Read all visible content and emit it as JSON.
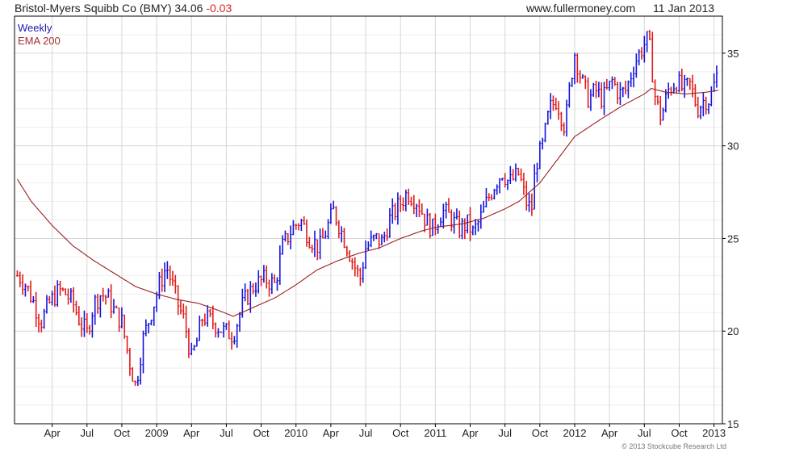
{
  "header": {
    "company": "Bristol-Myers Squibb Co (BMY)",
    "last_price": "34.06",
    "change": "-0.03",
    "site": "www.fullermoney.com",
    "date": "11 Jan 2013"
  },
  "legend": {
    "weekly": "Weekly",
    "ema": "EMA 200"
  },
  "copyright": "© 2013 Stockcube Research Ltd",
  "colors": {
    "up": "#1515dd",
    "down": "#e11b1b",
    "ema": "#9b2020",
    "grid": "#d6d6d6",
    "frame": "#000000"
  },
  "chart_data": {
    "type": "line",
    "subtype": "weekly price bars (high-low ranges, colored by week direction) with 200-period EMA",
    "title": "Bristol-Myers Squibb Co (BMY)",
    "xlabel": "",
    "ylabel": "",
    "ylim": [
      15,
      37
    ],
    "y_ticks": [
      15,
      20,
      25,
      30,
      35
    ],
    "grid": true,
    "y_axis_side": "right",
    "legend_placement": "top-left",
    "x_tick_labels": [
      "Apr",
      "Jul",
      "Oct",
      "2009",
      "Apr",
      "Jul",
      "Oct",
      "2010",
      "Apr",
      "Jul",
      "Oct",
      "2011",
      "Apr",
      "Jul",
      "Oct",
      "2012",
      "Apr",
      "Jul",
      "Oct",
      "2013"
    ],
    "x_tick_positions": [
      2008.25,
      2008.5,
      2008.75,
      2009.0,
      2009.25,
      2009.5,
      2009.75,
      2010.0,
      2010.25,
      2010.5,
      2010.75,
      2011.0,
      2011.25,
      2011.5,
      2011.75,
      2012.0,
      2012.25,
      2012.5,
      2012.75,
      2013.0
    ],
    "series": [
      {
        "name": "Weekly",
        "anchors": [
          [
            2008.01,
            23.0
          ],
          [
            2008.06,
            22.5
          ],
          [
            2008.12,
            21.5
          ],
          [
            2008.17,
            20.5
          ],
          [
            2008.23,
            21.5
          ],
          [
            2008.3,
            22.2
          ],
          [
            2008.35,
            22.0
          ],
          [
            2008.4,
            21.5
          ],
          [
            2008.45,
            20.5
          ],
          [
            2008.5,
            19.9
          ],
          [
            2008.55,
            21.5
          ],
          [
            2008.6,
            22.0
          ],
          [
            2008.65,
            21.8
          ],
          [
            2008.7,
            21.0
          ],
          [
            2008.75,
            20.5
          ],
          [
            2008.8,
            18.5
          ],
          [
            2008.85,
            17.0
          ],
          [
            2008.9,
            19.5
          ],
          [
            2008.94,
            20.5
          ],
          [
            2008.98,
            21.5
          ],
          [
            2009.02,
            22.5
          ],
          [
            2009.07,
            23.5
          ],
          [
            2009.1,
            22.8
          ],
          [
            2009.15,
            21.5
          ],
          [
            2009.2,
            20.5
          ],
          [
            2009.25,
            18.5
          ],
          [
            2009.29,
            19.5
          ],
          [
            2009.33,
            20.8
          ],
          [
            2009.4,
            20.5
          ],
          [
            2009.48,
            20.0
          ],
          [
            2009.55,
            19.8
          ],
          [
            2009.62,
            21.5
          ],
          [
            2009.7,
            22.5
          ],
          [
            2009.78,
            22.8
          ],
          [
            2009.85,
            22.5
          ],
          [
            2009.9,
            24.5
          ],
          [
            2009.97,
            25.5
          ],
          [
            2010.03,
            26.0
          ],
          [
            2010.1,
            25.0
          ],
          [
            2010.17,
            24.5
          ],
          [
            2010.22,
            25.5
          ],
          [
            2010.27,
            26.5
          ],
          [
            2010.32,
            25.5
          ],
          [
            2010.37,
            24.5
          ],
          [
            2010.42,
            23.5
          ],
          [
            2010.46,
            22.8
          ],
          [
            2010.5,
            24.5
          ],
          [
            2010.57,
            25.0
          ],
          [
            2010.62,
            24.8
          ],
          [
            2010.67,
            26.0
          ],
          [
            2010.74,
            26.8
          ],
          [
            2010.8,
            27.5
          ],
          [
            2010.87,
            27.0
          ],
          [
            2010.93,
            26.0
          ],
          [
            2010.98,
            25.5
          ],
          [
            2011.05,
            26.5
          ],
          [
            2011.1,
            26.2
          ],
          [
            2011.17,
            25.5
          ],
          [
            2011.23,
            25.8
          ],
          [
            2011.27,
            25.3
          ],
          [
            2011.32,
            26.0
          ],
          [
            2011.37,
            27.0
          ],
          [
            2011.43,
            28.0
          ],
          [
            2011.48,
            28.6
          ],
          [
            2011.53,
            28.0
          ],
          [
            2011.6,
            28.5
          ],
          [
            2011.65,
            27.0
          ],
          [
            2011.69,
            26.5
          ],
          [
            2011.72,
            29.0
          ],
          [
            2011.77,
            30.0
          ],
          [
            2011.82,
            32.0
          ],
          [
            2011.87,
            32.5
          ],
          [
            2011.93,
            31.0
          ],
          [
            2011.97,
            33.5
          ],
          [
            2012.0,
            35.0
          ],
          [
            2012.05,
            33.5
          ],
          [
            2012.1,
            32.5
          ],
          [
            2012.15,
            33.0
          ],
          [
            2012.2,
            32.5
          ],
          [
            2012.27,
            33.5
          ],
          [
            2012.32,
            32.8
          ],
          [
            2012.37,
            33.0
          ],
          [
            2012.43,
            34.5
          ],
          [
            2012.5,
            35.5
          ],
          [
            2012.53,
            35.8
          ],
          [
            2012.58,
            32.5
          ],
          [
            2012.62,
            31.5
          ],
          [
            2012.67,
            33.0
          ],
          [
            2012.73,
            33.5
          ],
          [
            2012.78,
            33.0
          ],
          [
            2012.83,
            33.3
          ],
          [
            2012.88,
            32.0
          ],
          [
            2012.93,
            32.5
          ],
          [
            2012.97,
            32.5
          ],
          [
            2013.03,
            34.06
          ]
        ]
      },
      {
        "name": "EMA 200",
        "anchors": [
          [
            2008.0,
            28.2
          ],
          [
            2008.1,
            27.0
          ],
          [
            2008.25,
            25.7
          ],
          [
            2008.4,
            24.6
          ],
          [
            2008.55,
            23.8
          ],
          [
            2008.7,
            23.1
          ],
          [
            2008.85,
            22.4
          ],
          [
            2009.0,
            22.0
          ],
          [
            2009.15,
            21.7
          ],
          [
            2009.3,
            21.5
          ],
          [
            2009.45,
            21.1
          ],
          [
            2009.55,
            20.8
          ],
          [
            2009.7,
            21.3
          ],
          [
            2009.85,
            21.8
          ],
          [
            2010.0,
            22.5
          ],
          [
            2010.15,
            23.3
          ],
          [
            2010.3,
            23.8
          ],
          [
            2010.45,
            24.2
          ],
          [
            2010.6,
            24.5
          ],
          [
            2010.75,
            25.0
          ],
          [
            2010.9,
            25.4
          ],
          [
            2011.0,
            25.6
          ],
          [
            2011.2,
            25.8
          ],
          [
            2011.35,
            26.1
          ],
          [
            2011.5,
            26.6
          ],
          [
            2011.6,
            27.0
          ],
          [
            2011.75,
            28.0
          ],
          [
            2011.85,
            29.0
          ],
          [
            2012.0,
            30.5
          ],
          [
            2012.2,
            31.5
          ],
          [
            2012.35,
            32.2
          ],
          [
            2012.5,
            32.8
          ],
          [
            2012.55,
            33.1
          ],
          [
            2012.65,
            32.9
          ],
          [
            2012.8,
            32.8
          ],
          [
            2012.95,
            32.9
          ],
          [
            2013.03,
            33.0
          ]
        ]
      }
    ]
  }
}
